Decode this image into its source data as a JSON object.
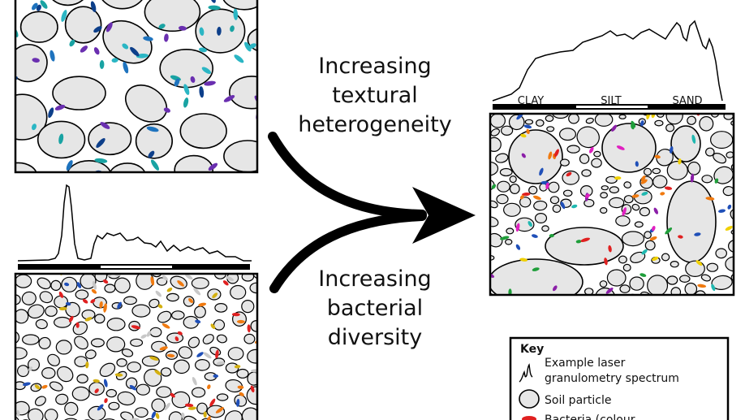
{
  "annotations": {
    "texture_label": [
      "Increasing",
      "textural",
      "heterogeneity"
    ],
    "diversity_label": [
      "Increasing",
      "bacterial",
      "diversity"
    ]
  },
  "spectrum_bar": {
    "clay": "CLAY",
    "silt": "SILT",
    "sand": "SAND"
  },
  "key": {
    "title": "Key",
    "items": [
      {
        "label_lines": [
          "Example laser",
          "granulometry spectrum"
        ],
        "icon": "spectrum-icon"
      },
      {
        "label_lines": [
          "Soil particle"
        ],
        "icon": "soil-particle-icon"
      },
      {
        "label_lines": [
          "Bacteria (colour"
        ],
        "icon": "bacteria-icon"
      }
    ]
  },
  "colors": {
    "particle_fill": "#e6e6e6",
    "outline": "#000000",
    "panel_top_bacteria": [
      "#1e73be",
      "#19a3a3",
      "#6a2fb0",
      "#0d3f8a",
      "#2bb6c4"
    ],
    "panel_bottom_bacteria": [
      "#e02020",
      "#f07a10",
      "#d4b010",
      "#1f4fb8",
      "#c8c8c8"
    ],
    "panel_right_bacteria": [
      "#e02020",
      "#f07a10",
      "#f0d000",
      "#1f9e3a",
      "#1f4fb8",
      "#8b1fa8",
      "#e020c0",
      "#20b8b0"
    ]
  }
}
